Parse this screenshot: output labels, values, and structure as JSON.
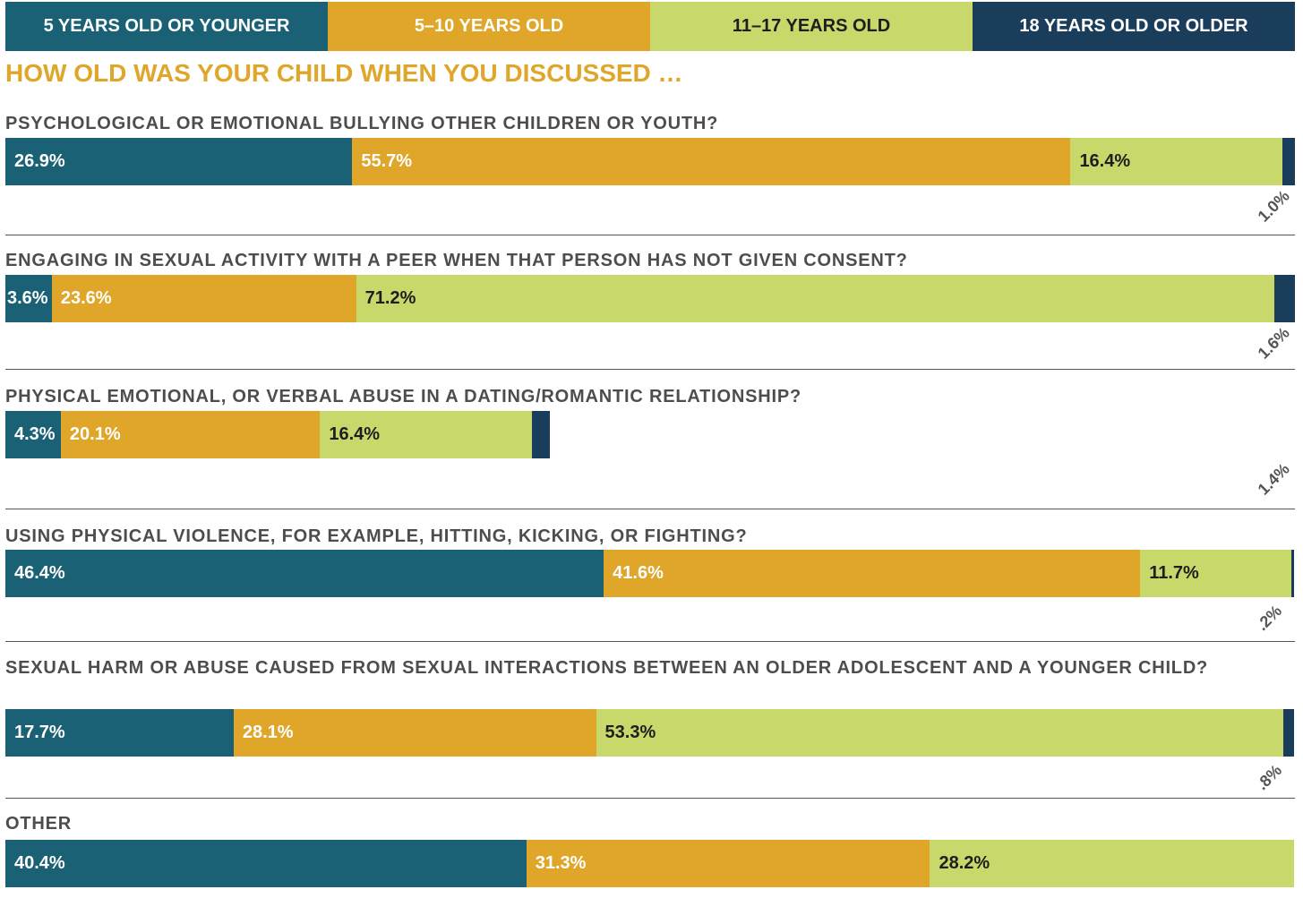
{
  "chart_data": {
    "type": "bar",
    "orientation": "horizontal",
    "stacked": true,
    "title": "HOW OLD WAS YOUR CHILD WHEN YOU DISCUSSED …",
    "categories": [
      "PSYCHOLOGICAL OR EMOTIONAL BULLYING OTHER CHILDREN OR YOUTH?",
      "ENGAGING IN SEXUAL ACTIVITY WITH A PEER WHEN THAT PERSON HAS NOT GIVEN CONSENT?",
      "PHYSICAL EMOTIONAL, OR VERBAL ABUSE IN A DATING/ROMANTIC RELATIONSHIP?",
      "USING PHYSICAL VIOLENCE, FOR EXAMPLE, HITTING, KICKING, OR FIGHTING?",
      "SEXUAL HARM OR ABUSE CAUSED FROM SEXUAL INTERACTIONS BETWEEN AN OLDER ADOLESCENT AND A YOUNGER CHILD?",
      "OTHER"
    ],
    "xlim": [
      0,
      100
    ],
    "series": [
      {
        "name": "5 YEARS OLD OR YOUNGER",
        "color": "#1a6175",
        "values": [
          26.9,
          3.6,
          4.3,
          46.4,
          17.7,
          40.4
        ],
        "value_labels": [
          "26.9%",
          "3.6%",
          "4.3%",
          "46.4%",
          "17.7%",
          "40.4%"
        ]
      },
      {
        "name": "5–10 YEARS OLD",
        "color": "#dfa62a",
        "values": [
          55.7,
          23.6,
          20.1,
          41.6,
          28.1,
          31.3
        ],
        "value_labels": [
          "55.7%",
          "23.6%",
          "20.1%",
          "41.6%",
          "28.1%",
          "31.3%"
        ]
      },
      {
        "name": "11–17 YEARS OLD",
        "color": "#c9d86a",
        "values": [
          16.4,
          71.2,
          16.4,
          11.7,
          53.3,
          28.2
        ],
        "value_labels": [
          "16.4%",
          "71.2%",
          "16.4%",
          "11.7%",
          "53.3%",
          "28.2%"
        ]
      },
      {
        "name": "18 YEARS OLD OR OLDER",
        "color": "#1b3d5c",
        "values": [
          1.0,
          1.6,
          1.4,
          0.2,
          0.8,
          null
        ],
        "value_labels": [
          "1.0%",
          "1.6%",
          "1.4%",
          ".2%",
          ".8%",
          null
        ]
      }
    ]
  }
}
